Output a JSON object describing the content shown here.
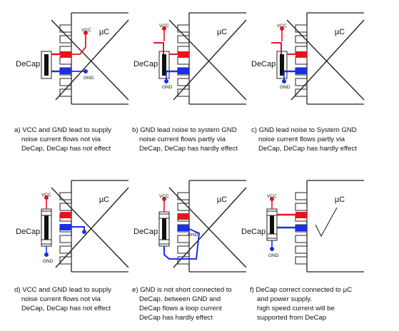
{
  "colors": {
    "vcc_trace": "#e8141c",
    "gnd_trace": "#1c2ee6",
    "outline": "#222222",
    "cap_body": "#111111"
  },
  "common": {
    "chip_label": "µC",
    "cap_label": "DeCap",
    "vcc_label": "VCC",
    "gnd_label": "GND"
  },
  "panels": [
    {
      "id": "a",
      "variant": "supply-bypass",
      "caption": [
        "a) VCC and GND lead to supply",
        "noise current flows not via",
        "DeCap, DeCap has not effect"
      ]
    },
    {
      "id": "b",
      "variant": "gnd-noise",
      "caption": [
        "b) GND lead noise to system GND",
        "noise current flows partly via",
        "DeCap, DeCap has hardly effect"
      ]
    },
    {
      "id": "c",
      "variant": "gnd-noise",
      "caption": [
        "c) GND lead noise to System GND",
        "noise current flows partly via",
        "DeCap, DeCap has hardly effect"
      ]
    },
    {
      "id": "d",
      "variant": "supply-bypass-vertical",
      "caption": [
        "d) VCC and GND lead to supply",
        "noise current flows not via",
        "DeCap, DeCap has not effect"
      ]
    },
    {
      "id": "e",
      "variant": "gnd-loop",
      "caption": [
        "e) GND is not short connected to",
        "DeCap. between GND and",
        "DeCap flows a loop current",
        "DeCap has hardly effect"
      ]
    },
    {
      "id": "f",
      "variant": "correct",
      "caption": [
        "f) DeCap correct connected to µC",
        "and power supply.",
        "high speed current will be",
        "supported from DeCap"
      ]
    }
  ]
}
